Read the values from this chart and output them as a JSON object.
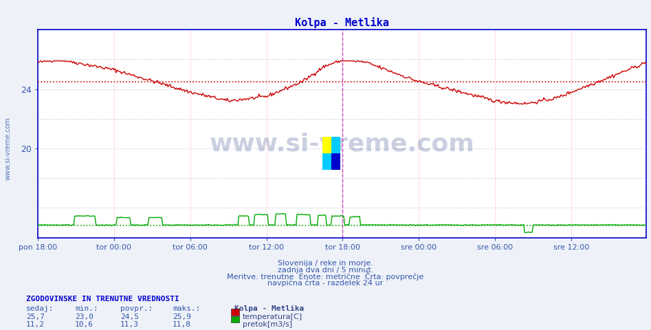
{
  "title": "Kolpa - Metlika",
  "title_color": "#0000cc",
  "bg_color": "#eef2f8",
  "plot_bg_color": "#ffffff",
  "fig_bg_color": "#eef2f8",
  "temp_color": "#cc0000",
  "flow_color": "#00aa00",
  "avg_temp": 24.5,
  "avg_flow_display": 14.8,
  "ylim_min": 14.0,
  "ylim_max": 28.0,
  "temp_min": 23.0,
  "temp_max": 25.9,
  "temp_current": 25.7,
  "temp_avg": 24.5,
  "flow_min": 10.6,
  "flow_max": 11.8,
  "flow_current": 11.2,
  "flow_avg": 11.3,
  "watermark": "www.si-vreme.com",
  "subtitle1": "Slovenija / reke in morje.",
  "subtitle2": "zadnja dva dni / 5 minut.",
  "subtitle3": "Meritve: trenutne  Enote: metrične  Črta: povprečje",
  "subtitle4": "navpična črta - razdelek 24 ur",
  "footer_title": "ZGODOVINSKE IN TRENUTNE VREDNOSTI",
  "col_headers": [
    "sedaj:",
    "min.:",
    "povpr.:",
    "maks.:"
  ],
  "tick_labels": [
    "pon 18:00",
    "tor 00:00",
    "tor 06:00",
    "tor 12:00",
    "tor 18:00",
    "sre 00:00",
    "sre 06:00",
    "sre 12:00"
  ],
  "n_points": 576
}
